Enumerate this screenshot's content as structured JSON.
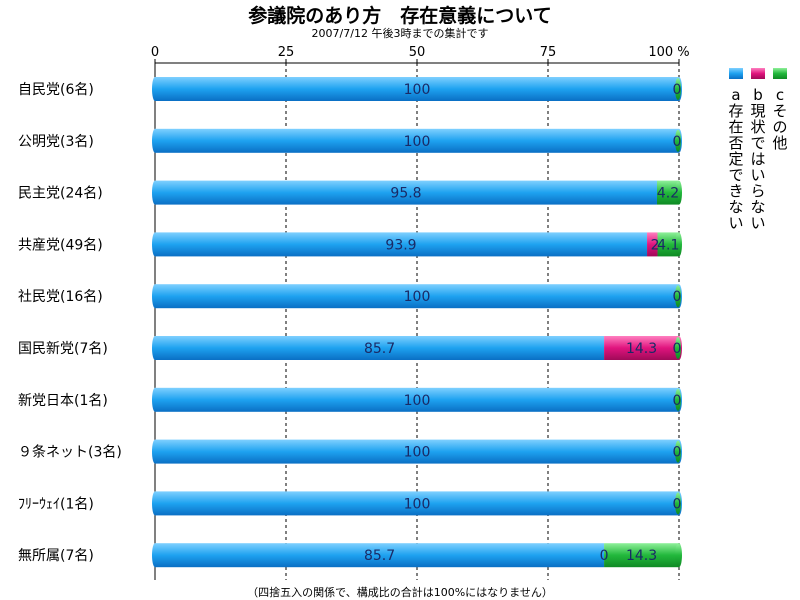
{
  "chart_data": {
    "type": "bar",
    "orientation": "horizontal",
    "stacked": true,
    "title": "参議院のあり方　存在意義について",
    "subtitle": "2007/7/12 午後3時までの集計です",
    "footnote": "（四捨五入の関係で、構成比の合計は100%にはなりません）",
    "x_ticks": [
      "0",
      "25",
      "50",
      "75",
      "100 %"
    ],
    "xlim": [
      0,
      100
    ],
    "grid": true,
    "legend_position": "right",
    "categories": [
      "自民党(6名)",
      "公明党(3名)",
      "民主党(24名)",
      "共産党(49名)",
      "社民党(16名)",
      "国民新党(7名)",
      "新党日本(1名)",
      "９条ネット(3名)",
      "ﾌﾘｰｳｪｲ(1名)",
      "無所属(7名)"
    ],
    "series": [
      {
        "legend_letter": "a",
        "legend_text": "存在否定できない",
        "color": "#1ea2f0",
        "values": [
          100,
          100,
          95.8,
          93.9,
          100,
          85.7,
          100,
          100,
          100,
          85.7
        ],
        "labels": [
          "100",
          "100",
          "95.8",
          "93.9",
          "100",
          "85.7",
          "100",
          "100",
          "100",
          "85.7"
        ]
      },
      {
        "legend_letter": "b",
        "legend_text": "現状ではいらない",
        "color": "#e0147e",
        "values": [
          0,
          0,
          0,
          2,
          0,
          14.3,
          0,
          0,
          0,
          0
        ],
        "labels": [
          "",
          "",
          "",
          "2",
          "",
          "14.3",
          "",
          "",
          "",
          "0"
        ]
      },
      {
        "legend_letter": "c",
        "legend_text": "その他",
        "color": "#22b83c",
        "values": [
          0,
          0,
          4.2,
          4.1,
          0,
          0,
          0,
          0,
          0,
          14.3
        ],
        "labels": [
          "0",
          "0",
          "4.2",
          "4.1",
          "0",
          "0",
          "0",
          "0",
          "0",
          "14.3"
        ]
      }
    ]
  }
}
